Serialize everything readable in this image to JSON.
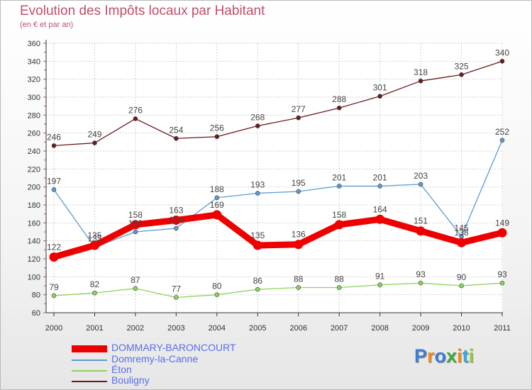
{
  "header": {
    "title": "Evolution des Impôts locaux par Habitant",
    "subtitle": "(en € et par an)"
  },
  "brand": {
    "text": "Proxiti",
    "colors": [
      "#3a7fd5",
      "#f28a1a",
      "#3a7fd5",
      "#3caa3c",
      "#f28a1a",
      "#3aa7e0",
      "#9ac83c"
    ]
  },
  "chart_data": {
    "type": "line",
    "title": "Evolution des Impôts locaux par Habitant",
    "subtitle": "(en € et par an)",
    "x": [
      "2000",
      "2001",
      "2002",
      "2003",
      "2004",
      "2005",
      "2006",
      "2007",
      "2008",
      "2009",
      "2010",
      "2011"
    ],
    "y_ticks": [
      "60",
      "80",
      "100",
      "120",
      "140",
      "160",
      "180",
      "200",
      "220",
      "240",
      "260",
      "280",
      "300",
      "320",
      "340",
      "360"
    ],
    "ylim": [
      60,
      360
    ],
    "grid": true,
    "legend_position": "bottom-left",
    "series": [
      {
        "name": "Bouligny",
        "color": "#6b1a1e",
        "values": [
          246,
          249,
          276,
          254,
          256,
          268,
          277,
          288,
          301,
          318,
          325,
          340
        ],
        "labels": [
          "246",
          "249",
          "276",
          "254",
          "256",
          "268",
          "277",
          "288",
          "301",
          "318",
          "325",
          "340"
        ]
      },
      {
        "name": "Domremy-la-Canne",
        "color": "#5a9bd4",
        "values": [
          197,
          133,
          150,
          154,
          188,
          193,
          195,
          201,
          201,
          203,
          145,
          252
        ],
        "labels": [
          "197",
          "133",
          "150",
          "154",
          "188",
          "193",
          "195",
          "201",
          "201",
          "203",
          "145",
          "252"
        ]
      },
      {
        "name": "Éton",
        "color": "#8ad45a",
        "values": [
          79,
          82,
          87,
          77,
          80,
          86,
          88,
          88,
          91,
          93,
          90,
          93
        ],
        "labels": [
          "79",
          "82",
          "87",
          "77",
          "80",
          "86",
          "88",
          "88",
          "91",
          "93",
          "90",
          "93"
        ]
      },
      {
        "name": "DOMMARY-BARONCOURT",
        "color": "#ee0000",
        "values": [
          122,
          135,
          158,
          163,
          169,
          135,
          136,
          158,
          164,
          151,
          138,
          149
        ],
        "labels": [
          "122",
          "135",
          "158",
          "163",
          "169",
          "135",
          "136",
          "158",
          "164",
          "151",
          "138",
          "149"
        ]
      }
    ]
  },
  "legend": {
    "items": [
      {
        "label": "DOMMARY-BARONCOURT",
        "color": "#ee0000"
      },
      {
        "label": "Domremy-la-Canne",
        "color": "#5a9bd4"
      },
      {
        "label": "Éton",
        "color": "#8ad45a"
      },
      {
        "label": "Bouligny",
        "color": "#6b1a1e"
      }
    ]
  }
}
